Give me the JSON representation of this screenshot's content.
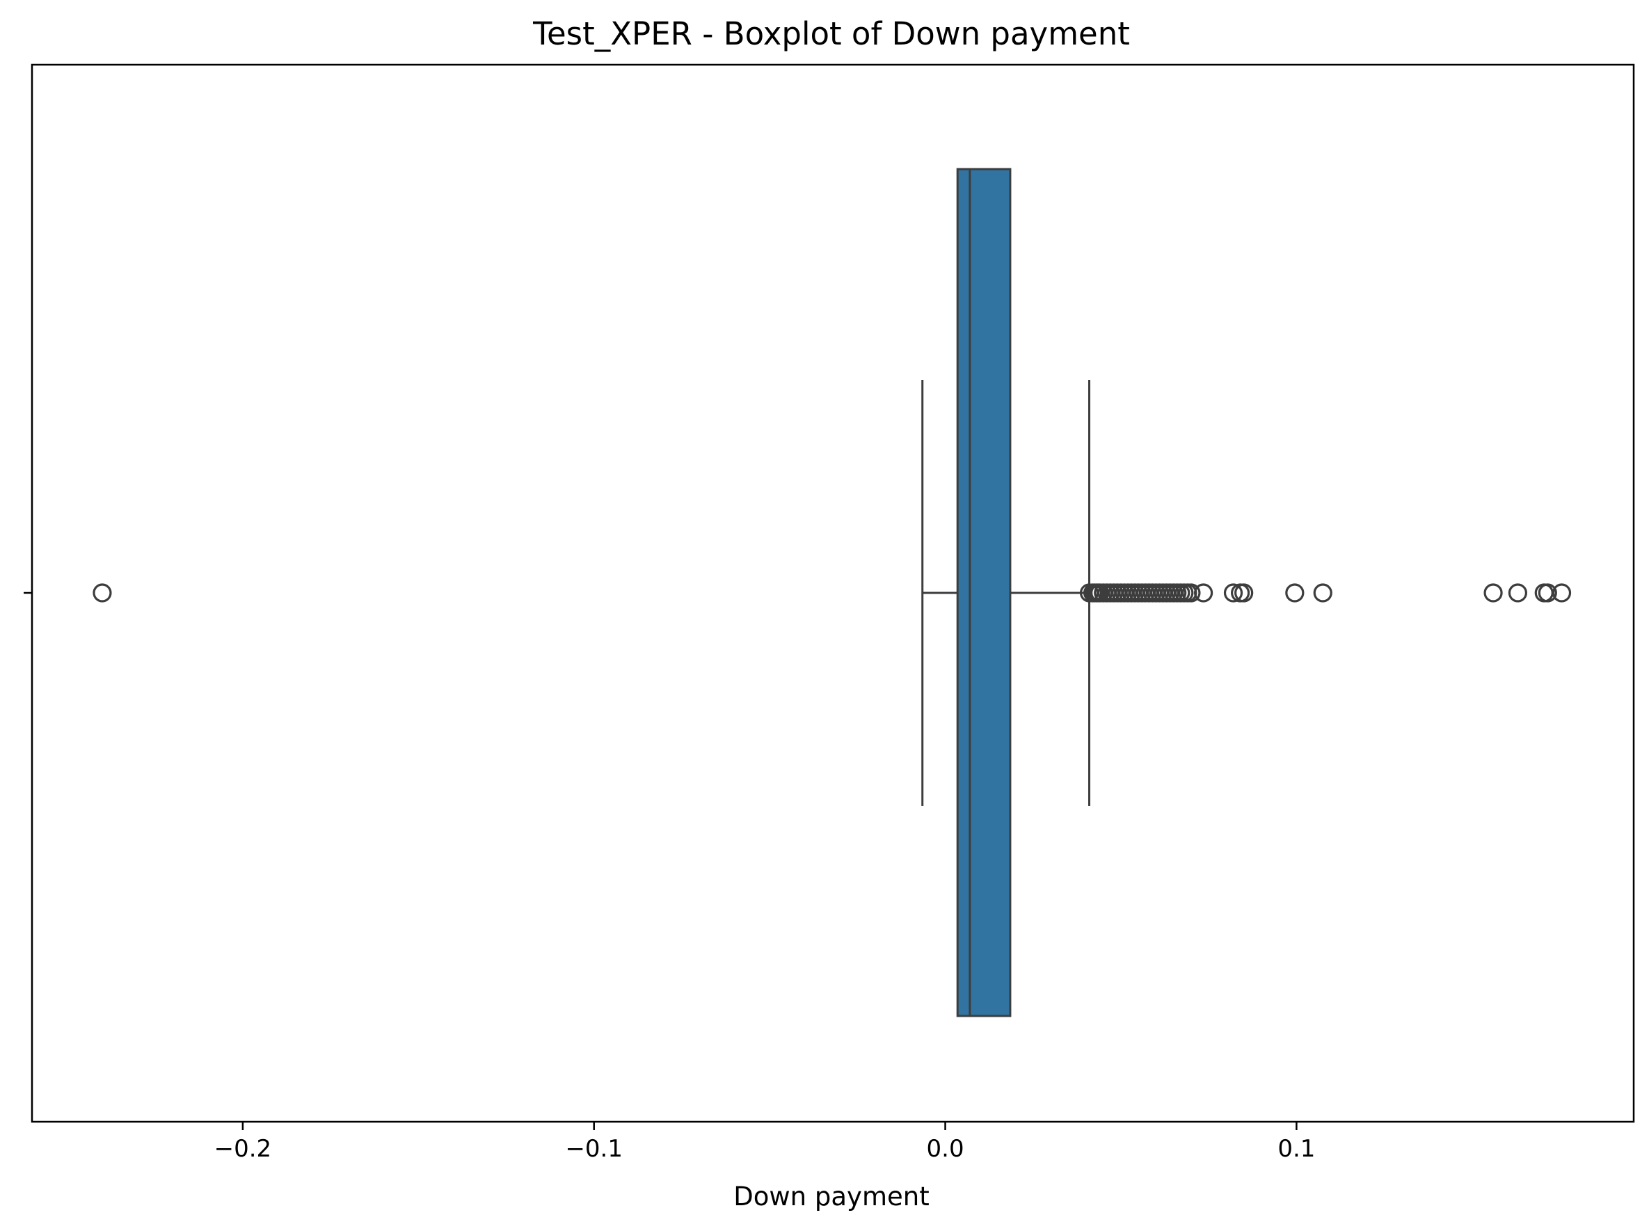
{
  "chart_data": {
    "type": "boxplot",
    "title": "Test_XPER - Boxplot of Down payment",
    "xlabel": "Down payment",
    "ylabel": "",
    "xlim": [
      -0.26,
      0.196
    ],
    "x_ticks": [
      -0.2,
      -0.1,
      0.0,
      0.1
    ],
    "x_tick_labels": [
      "−0.2",
      "−0.1",
      "0.0",
      "0.1"
    ],
    "grid": false,
    "box": {
      "whisker_low": -0.0065,
      "q1": 0.0035,
      "median": 0.007,
      "q3": 0.0185,
      "whisker_high": 0.041
    },
    "outliers": [
      -0.24,
      0.041,
      0.042,
      0.0425,
      0.043,
      0.0435,
      0.044,
      0.045,
      0.046,
      0.047,
      0.048,
      0.049,
      0.05,
      0.051,
      0.052,
      0.053,
      0.054,
      0.055,
      0.056,
      0.057,
      0.058,
      0.059,
      0.06,
      0.061,
      0.062,
      0.063,
      0.064,
      0.065,
      0.066,
      0.067,
      0.068,
      0.069,
      0.07,
      0.0735,
      0.082,
      0.084,
      0.085,
      0.0995,
      0.1075,
      0.156,
      0.163,
      0.1705,
      0.1715,
      0.1755
    ],
    "colors": {
      "box_fill": "#3274a1",
      "line": "#3d3d3d"
    }
  }
}
